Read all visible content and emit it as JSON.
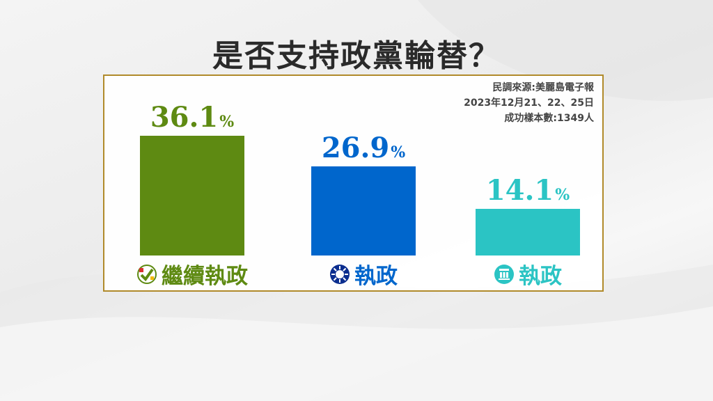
{
  "title": "是否支持政黨輪替？",
  "source": {
    "line1": "民調來源:美麗島電子報",
    "line2": "2023年12月21、22、25日",
    "line3": "成功樣本數:1349人"
  },
  "colors": {
    "dpp": "#5e8a12",
    "kmt": "#0066cc",
    "tpp": "#2bc4c4",
    "frame": "#b08a2a"
  },
  "chart_data": {
    "type": "bar",
    "title": "是否支持政黨輪替？",
    "categories": [
      "繼續執政",
      "執政",
      "執政"
    ],
    "values": [
      36.1,
      26.9,
      14.1
    ],
    "value_unit": "%",
    "bar_colors": [
      "#5e8a12",
      "#0066cc",
      "#2bc4c4"
    ],
    "category_icons": [
      "dpp-logo-icon",
      "kmt-emblem-icon",
      "tpp-logo-icon"
    ],
    "ylim": [
      0,
      40
    ],
    "grid": false
  },
  "bars": [
    {
      "value_text": "36.1",
      "unit": "%",
      "label": "繼續執政"
    },
    {
      "value_text": "26.9",
      "unit": "%",
      "label": "執政"
    },
    {
      "value_text": "14.1",
      "unit": "%",
      "label": "執政"
    }
  ]
}
